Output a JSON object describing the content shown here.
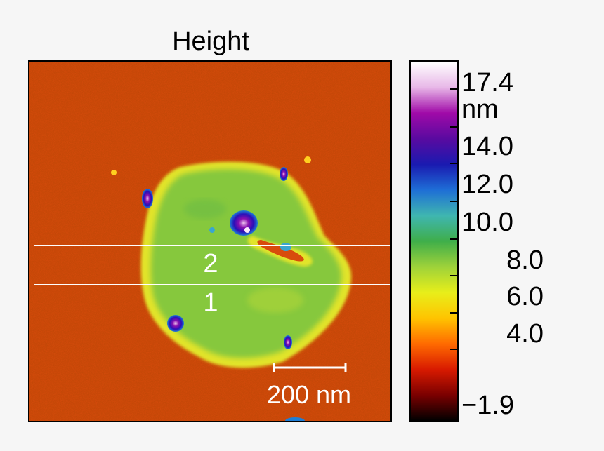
{
  "title": "Height",
  "image": {
    "description_colors": {
      "background": "#d64a0a",
      "domain": "#7fc63a",
      "rim": "#dfe42a",
      "peak": "#5a1aa8"
    },
    "profile_lines": [
      {
        "label": "2"
      },
      {
        "label": "1"
      }
    ],
    "scale_bar": {
      "label": "200 nm",
      "length_nm": 200
    }
  },
  "colorbar": {
    "min": -1.9,
    "max": 17.4,
    "unit": "nm",
    "labels": [
      "17.4 nm",
      "14.0",
      "12.0",
      "10.0",
      "8.0",
      "6.0",
      "4.0",
      "−1.9"
    ],
    "colors": [
      "#000000",
      "#7a0000",
      "#d81a00",
      "#ff6a00",
      "#ffc400",
      "#e8ee1a",
      "#9ed23a",
      "#3fae4a",
      "#3fb6b0",
      "#1e6ed6",
      "#1a1ab0",
      "#5a0aa0",
      "#a00aa8",
      "#e8b8e8",
      "#ffffff"
    ]
  }
}
